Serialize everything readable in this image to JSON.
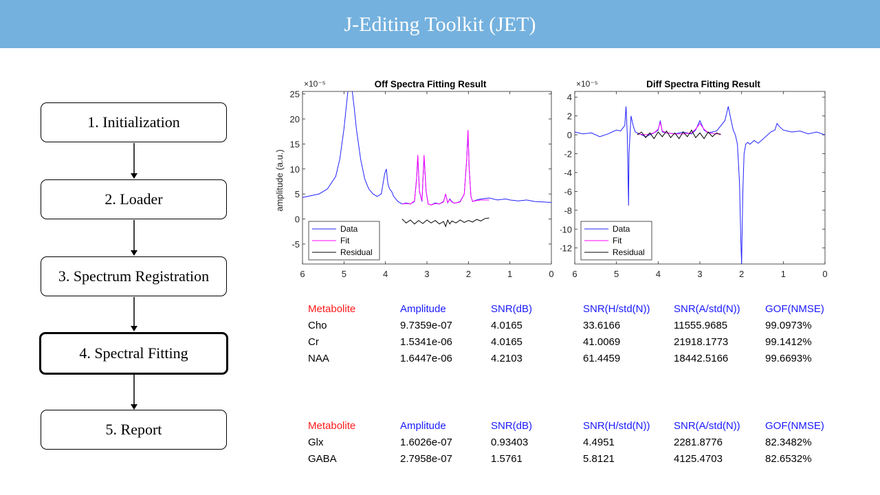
{
  "banner": {
    "title": "J-Editing Toolkit (JET)"
  },
  "steps": [
    {
      "label": "1. Initialization",
      "active": false
    },
    {
      "label": "2. Loader",
      "active": false
    },
    {
      "label": "3. Spectrum Registration",
      "active": false
    },
    {
      "label": "4. Spectral Fitting",
      "active": true
    },
    {
      "label": "5. Report",
      "active": false
    }
  ],
  "colors": {
    "banner": "#74b1de",
    "data": "#2020ff",
    "fit": "#ff00ff",
    "residual": "#000000",
    "header_metabolite": "#ff1a1a",
    "header_other": "#1a1aff"
  },
  "chart_data": [
    {
      "type": "line",
      "title": "Off Spectra Fitting Result",
      "ylabel": "amplitude (a.u.)",
      "xlabel": "",
      "exponent": "×10⁻⁵",
      "xlim": [
        6,
        0
      ],
      "ylim": [
        -9,
        25.5
      ],
      "xticks": [
        "6",
        "5",
        "4",
        "3",
        "2",
        "1",
        "0"
      ],
      "yticks": [
        "25",
        "20",
        "15",
        "10",
        "5",
        "0",
        "-5"
      ],
      "legend": {
        "placement": "bottom-left",
        "entries": [
          "Data",
          "Fit",
          "Residual"
        ]
      },
      "series": [
        {
          "name": "Data",
          "color": "#2020ff",
          "x": [
            6.0,
            5.6,
            5.4,
            5.2,
            5.1,
            5.0,
            4.95,
            4.9,
            4.85,
            4.8,
            4.75,
            4.7,
            4.6,
            4.5,
            4.4,
            4.3,
            4.2,
            4.1,
            4.02,
            3.98,
            3.94,
            3.9,
            3.85,
            3.8,
            3.7,
            3.6,
            3.5,
            3.4,
            3.3,
            3.25,
            3.22,
            3.18,
            3.12,
            3.07,
            3.02,
            2.97,
            2.9,
            2.8,
            2.7,
            2.6,
            2.55,
            2.5,
            2.45,
            2.4,
            2.35,
            2.3,
            2.2,
            2.1,
            2.04,
            2.01,
            1.98,
            1.94,
            1.9,
            1.8,
            1.7,
            1.5,
            1.3,
            1.1,
            1.0,
            0.8,
            0.6,
            0.4,
            0.2,
            0.0
          ],
          "y": [
            4.3,
            5.0,
            6.0,
            8.5,
            12.0,
            18.0,
            22.0,
            26.0,
            27.0,
            25.5,
            22.0,
            18.0,
            12.0,
            8.0,
            6.0,
            5.0,
            4.5,
            5.0,
            9.0,
            10.0,
            7.0,
            6.0,
            5.5,
            4.5,
            3.5,
            3.0,
            3.2,
            3.0,
            3.5,
            8.0,
            12.5,
            5.5,
            3.5,
            12.5,
            5.5,
            3.0,
            2.8,
            3.2,
            3.0,
            3.5,
            5.0,
            3.2,
            4.0,
            3.5,
            3.2,
            3.2,
            3.5,
            5.0,
            12.0,
            17.5,
            10.0,
            4.5,
            3.5,
            3.8,
            4.0,
            4.2,
            3.8,
            4.0,
            3.8,
            3.6,
            3.8,
            3.5,
            3.4,
            3.3
          ]
        },
        {
          "name": "Fit",
          "color": "#ff00ff",
          "x": [
            3.6,
            3.5,
            3.4,
            3.3,
            3.25,
            3.22,
            3.18,
            3.12,
            3.07,
            3.02,
            2.97,
            2.9,
            2.8,
            2.7,
            2.6,
            2.55,
            2.5,
            2.45,
            2.4,
            2.35,
            2.3,
            2.2,
            2.1,
            2.04,
            2.01,
            1.98,
            1.94,
            1.9,
            1.8,
            1.7,
            1.5
          ],
          "y": [
            3.0,
            3.1,
            3.0,
            3.6,
            8.0,
            12.8,
            5.6,
            3.6,
            12.8,
            5.6,
            3.0,
            2.8,
            3.1,
            3.0,
            3.4,
            5.0,
            3.3,
            3.9,
            3.4,
            3.2,
            3.2,
            3.4,
            5.0,
            12.0,
            17.8,
            10.0,
            4.5,
            3.5,
            3.7,
            3.8,
            3.8
          ]
        },
        {
          "name": "Residual",
          "color": "#000000",
          "x": [
            3.6,
            3.5,
            3.4,
            3.3,
            3.2,
            3.1,
            3.0,
            2.9,
            2.8,
            2.7,
            2.6,
            2.55,
            2.5,
            2.45,
            2.4,
            2.3,
            2.2,
            2.1,
            2.0,
            1.9,
            1.8,
            1.7,
            1.6,
            1.5
          ],
          "y": [
            0.0,
            -0.8,
            -0.2,
            -1.0,
            -0.3,
            -0.9,
            -0.2,
            -0.8,
            -0.3,
            -1.0,
            -0.5,
            -1.5,
            -0.2,
            -1.0,
            -0.4,
            -0.8,
            -0.2,
            -0.7,
            -0.3,
            -0.6,
            -0.1,
            -0.4,
            0.1,
            0.2
          ]
        }
      ]
    },
    {
      "type": "line",
      "title": "Diff Spectra Fitting Result",
      "ylabel": "",
      "xlabel": "",
      "exponent": "×10⁻⁵",
      "xlim": [
        6,
        0
      ],
      "ylim": [
        -13.7,
        4.6
      ],
      "xticks": [
        "6",
        "5",
        "4",
        "3",
        "2",
        "1",
        "0"
      ],
      "yticks": [
        "4",
        "2",
        "0",
        "-2",
        "-4",
        "-6",
        "-8",
        "-10",
        "-12"
      ],
      "legend": {
        "placement": "bottom-left",
        "entries": [
          "Data",
          "Fit",
          "Residual"
        ]
      },
      "series": [
        {
          "name": "Data",
          "color": "#2020ff",
          "x": [
            6.0,
            5.8,
            5.6,
            5.4,
            5.2,
            5.0,
            4.9,
            4.8,
            4.77,
            4.74,
            4.71,
            4.7,
            4.65,
            4.6,
            4.55,
            4.5,
            4.3,
            4.1,
            4.0,
            3.95,
            3.9,
            3.8,
            3.6,
            3.4,
            3.2,
            3.1,
            3.0,
            2.9,
            2.8,
            2.6,
            2.4,
            2.32,
            2.25,
            2.2,
            2.15,
            2.1,
            2.05,
            2.02,
            2.0,
            1.97,
            1.94,
            1.9,
            1.85,
            1.8,
            1.7,
            1.6,
            1.5,
            1.3,
            1.2,
            1.15,
            1.1,
            1.0,
            0.8,
            0.6,
            0.4,
            0.2,
            0.0
          ],
          "y": [
            0.3,
            0.1,
            0.2,
            -0.2,
            0.1,
            0.5,
            0.4,
            1.0,
            3.0,
            0.0,
            -7.5,
            -2.0,
            2.0,
            1.0,
            0.3,
            0.2,
            -0.2,
            0.2,
            0.5,
            1.5,
            0.3,
            0.2,
            0.1,
            0.3,
            0.1,
            0.5,
            1.5,
            0.5,
            0.2,
            0.4,
            1.5,
            3.0,
            1.5,
            0.5,
            0.0,
            -1.0,
            -5.0,
            -11.0,
            -13.7,
            -6.0,
            -2.0,
            -1.0,
            -0.8,
            -1.0,
            -0.6,
            -0.9,
            -0.5,
            0.3,
            0.5,
            1.2,
            0.9,
            0.5,
            0.3,
            0.4,
            0.1,
            0.3,
            0.0
          ]
        },
        {
          "name": "Fit",
          "color": "#ff00ff",
          "x": [
            4.5,
            4.3,
            4.1,
            4.0,
            3.95,
            3.9,
            3.8,
            3.6,
            3.4,
            3.2,
            3.1,
            3.0,
            2.9,
            2.8,
            2.6,
            2.5
          ],
          "y": [
            0.1,
            0.0,
            0.2,
            0.6,
            1.3,
            0.4,
            0.2,
            0.1,
            0.1,
            0.2,
            0.6,
            1.2,
            0.6,
            0.2,
            0.1,
            0.1
          ]
        },
        {
          "name": "Residual",
          "color": "#000000",
          "x": [
            4.5,
            4.4,
            4.3,
            4.2,
            4.1,
            4.0,
            3.9,
            3.8,
            3.7,
            3.6,
            3.5,
            3.4,
            3.3,
            3.2,
            3.1,
            3.0,
            2.9,
            2.8,
            2.7,
            2.6,
            2.5
          ],
          "y": [
            0.0,
            0.3,
            -0.3,
            0.2,
            -0.4,
            0.3,
            -0.2,
            0.4,
            -0.3,
            0.2,
            -0.4,
            0.3,
            -0.2,
            0.5,
            -0.3,
            0.2,
            -0.4,
            0.3,
            -0.2,
            0.2,
            0.0
          ]
        }
      ]
    }
  ],
  "table1": {
    "header": [
      "Metabolite",
      "Amplitude",
      "SNR(dB)",
      "SNR(H/std(N))",
      "SNR(A/std(N))",
      "GOF(NMSE)"
    ],
    "rows": [
      [
        "Cho",
        "9.7359e-07",
        "4.0165",
        "33.6166",
        "11555.9685",
        "99.0973%"
      ],
      [
        "Cr",
        "1.5341e-06",
        "4.0165",
        "41.0069",
        "21918.1773",
        "99.1412%"
      ],
      [
        "NAA",
        "1.6447e-06",
        "4.2103",
        "61.4459",
        "18442.5166",
        "99.6693%"
      ]
    ]
  },
  "table2": {
    "header": [
      "Metabolite",
      "Amplitude",
      "SNR(dB)",
      "SNR(H/std(N))",
      "SNR(A/std(N))",
      "GOF(NMSE)"
    ],
    "rows": [
      [
        "Glx",
        "1.6026e-07",
        "0.93403",
        "4.4951",
        "2281.8776",
        "82.3482%"
      ],
      [
        "GABA",
        "2.7958e-07",
        "1.5761",
        "5.8121",
        "4125.4703",
        "82.6532%"
      ]
    ]
  }
}
